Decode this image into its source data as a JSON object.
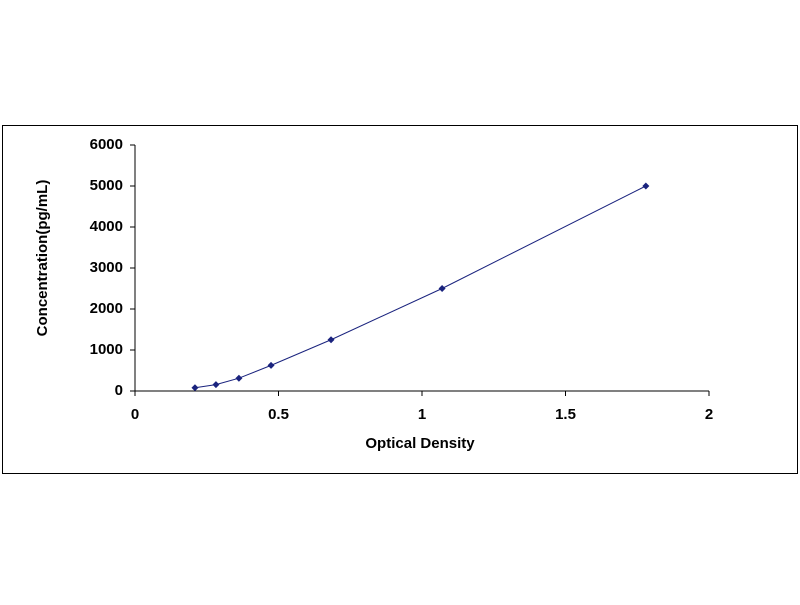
{
  "chart_data": {
    "type": "scatter",
    "line": true,
    "x_label": "Optical Density",
    "y_label": "Concentration(pg/mL)",
    "x": [
      0.209,
      0.282,
      0.362,
      0.474,
      0.683,
      1.07,
      1.78
    ],
    "values": [
      78,
      156,
      312,
      625,
      1250,
      2500,
      5000
    ],
    "color": "#1a237e",
    "xlim": [
      0,
      2
    ],
    "xticks": [
      0,
      0.5,
      1,
      1.5,
      2
    ],
    "ylim": [
      0,
      6000
    ],
    "yticks": [
      0,
      1000,
      2000,
      3000,
      4000,
      5000,
      6000
    ],
    "grid": false
  }
}
